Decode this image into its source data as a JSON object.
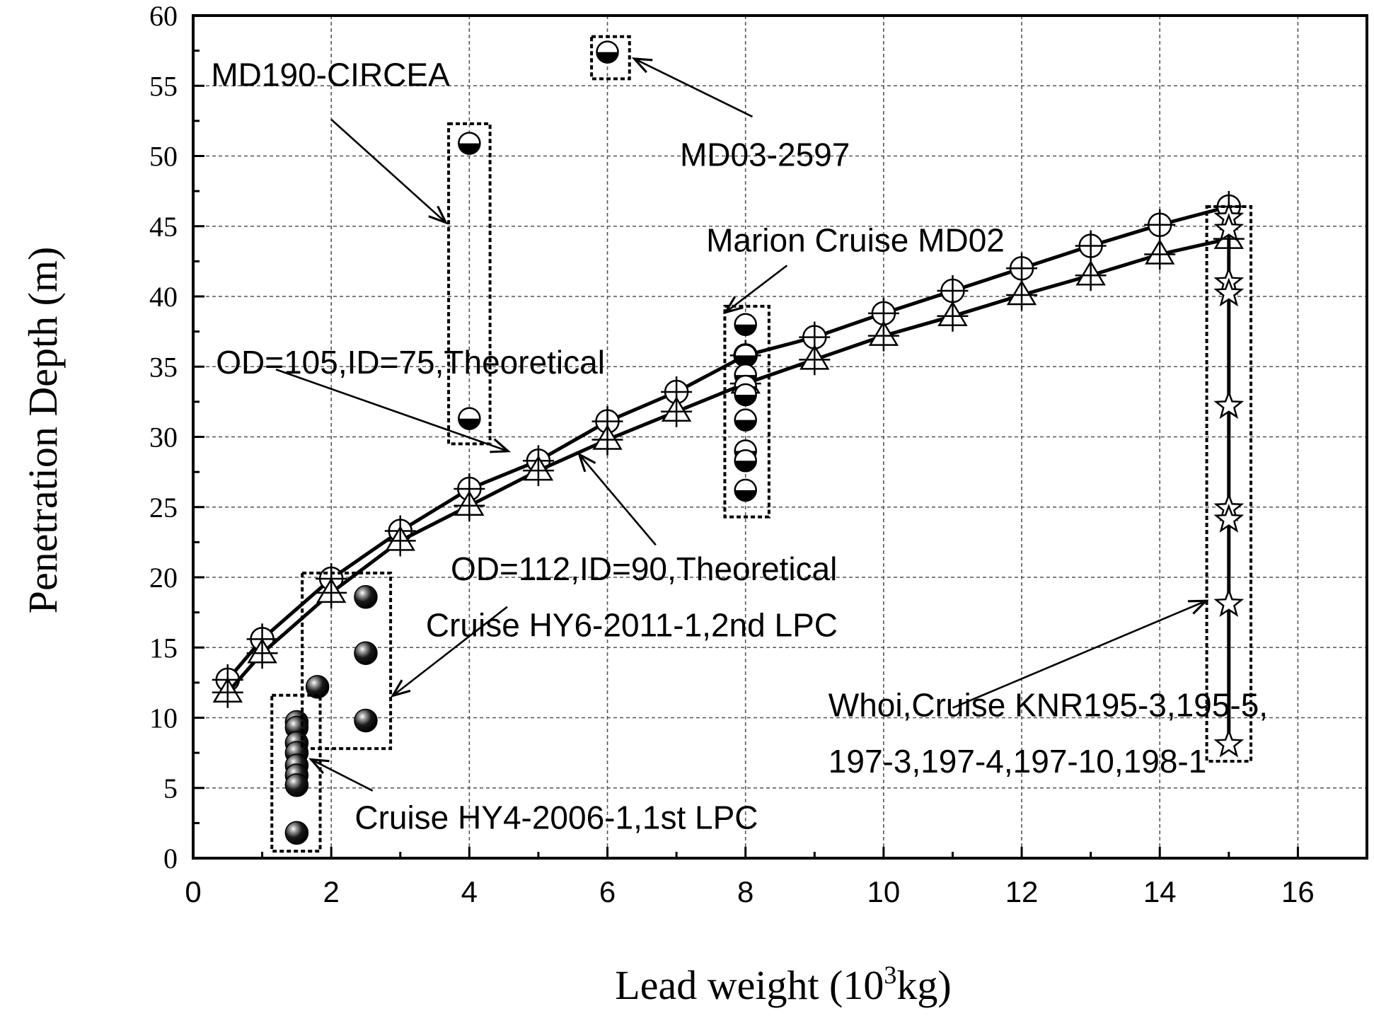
{
  "chart_data": {
    "type": "scatter",
    "title": "",
    "xlabel": "Lead weight (10",
    "xlabel_superscript": "3",
    "xlabel_suffix": "kg)",
    "ylabel": "Penetration Depth (m)",
    "xlim": [
      0,
      17
    ],
    "ylim": [
      0,
      60
    ],
    "xticks": [
      0,
      2,
      4,
      6,
      8,
      10,
      12,
      14,
      16
    ],
    "yticks": [
      0,
      5,
      10,
      15,
      20,
      25,
      30,
      35,
      40,
      45,
      50,
      55,
      60
    ],
    "grid": true,
    "colors": {
      "ink": "#000000",
      "grid": "#555555",
      "background": "#ffffff"
    },
    "series": [
      {
        "name": "OD=105,ID=75,Theoretical",
        "marker": "circle-plus",
        "line": true,
        "x": [
          0.5,
          1,
          2,
          3,
          4,
          5,
          6,
          7,
          8,
          9,
          10,
          11,
          12,
          13,
          14,
          15
        ],
        "y": [
          12.7,
          15.6,
          19.9,
          23.3,
          26.3,
          28.3,
          31.1,
          33.2,
          35.8,
          37.1,
          38.8,
          40.4,
          42.0,
          43.6,
          45.1,
          46.4
        ]
      },
      {
        "name": "OD=112,ID=90,Theoretical",
        "marker": "triangle-plus",
        "line": true,
        "x": [
          0.5,
          1,
          2,
          3,
          4,
          5,
          6,
          7,
          8,
          9,
          10,
          11,
          12,
          13,
          14,
          15
        ],
        "y": [
          11.8,
          14.6,
          18.9,
          22.6,
          25.1,
          27.6,
          29.8,
          31.8,
          33.8,
          35.5,
          37.2,
          38.6,
          40.1,
          41.5,
          43.0,
          44.1
        ]
      },
      {
        "name": "Marion Cruise MD02",
        "marker": "half-filled-circle",
        "line": false,
        "x": [
          8,
          8,
          8,
          8,
          8,
          8,
          8,
          8,
          8
        ],
        "y": [
          38.0,
          35.8,
          34.4,
          33.6,
          33.0,
          31.2,
          29.0,
          28.3,
          26.2
        ]
      },
      {
        "name": "MD190-CIRCEA",
        "marker": "half-filled-circle",
        "line": false,
        "x": [
          4,
          4
        ],
        "y": [
          50.9,
          31.3
        ]
      },
      {
        "name": "MD03-2597",
        "marker": "half-filled-circle",
        "line": false,
        "x": [
          6
        ],
        "y": [
          57.4
        ]
      },
      {
        "name": "Cruise HY6-2011-1,2nd LPC",
        "marker": "filled-sphere",
        "line": false,
        "x": [
          2.5,
          2.5,
          2.5,
          1.8
        ],
        "y": [
          18.6,
          14.6,
          9.8,
          12.2
        ]
      },
      {
        "name": "Cruise HY4-2006-1,1st LPC",
        "marker": "filled-sphere",
        "line": false,
        "x": [
          1.5,
          1.5,
          1.5,
          1.5,
          1.5,
          1.5,
          1.5,
          1.5
        ],
        "y": [
          9.7,
          9.3,
          8.2,
          7.5,
          6.6,
          5.9,
          5.2,
          1.8
        ]
      },
      {
        "name": "Whoi,Cruise KNR195-3,195-5,197-3,197-4,197-10,198-1",
        "marker": "star",
        "line": true,
        "x": [
          15,
          15,
          15,
          15,
          15,
          15,
          15,
          15,
          15
        ],
        "y": [
          45.6,
          44.8,
          41.0,
          40.2,
          32.2,
          24.9,
          24.1,
          18.1,
          8.1
        ]
      }
    ],
    "boxes": [
      {
        "name": "MD03-2597",
        "x": [
          5.77,
          6.32
        ],
        "y": [
          55.5,
          58.5
        ]
      },
      {
        "name": "MD190-CIRCEA",
        "x": [
          3.7,
          4.3
        ],
        "y": [
          29.5,
          52.3
        ]
      },
      {
        "name": "Marion Cruise MD02",
        "x": [
          7.7,
          8.34
        ],
        "y": [
          24.3,
          39.3
        ]
      },
      {
        "name": "Cruise HY6-2011-1,2nd LPC",
        "x": [
          1.58,
          2.86
        ],
        "y": [
          7.8,
          20.3
        ]
      },
      {
        "name": "Cruise HY4-2006-1,1st LPC",
        "x": [
          1.14,
          1.84
        ],
        "y": [
          0.5,
          11.6
        ]
      },
      {
        "name": "Whoi,Cruise KNR195-3,195-5,197-3,197-4,197-10,198-1",
        "x": [
          14.68,
          15.32
        ],
        "y": [
          6.9,
          46.4
        ]
      }
    ],
    "annotations": [
      {
        "id": "md190",
        "lines": [
          "MD190-CIRCEA"
        ],
        "text_at": [
          0.26,
          55.0
        ],
        "arrow_from": [
          2.0,
          52.6
        ],
        "arrow_to": [
          3.65,
          45.3
        ]
      },
      {
        "id": "md03",
        "lines": [
          "MD03-2597"
        ],
        "text_at": [
          7.05,
          49.3
        ],
        "arrow_from": [
          8.1,
          52.8
        ],
        "arrow_to": [
          6.4,
          56.9
        ]
      },
      {
        "id": "marion",
        "lines": [
          "Marion Cruise MD02"
        ],
        "text_at": [
          7.43,
          43.2
        ],
        "arrow_from": [
          8.6,
          42.2
        ],
        "arrow_to": [
          7.72,
          38.9
        ]
      },
      {
        "id": "od105",
        "lines": [
          "OD=105,ID=75,Theoretical"
        ],
        "text_at": [
          0.33,
          34.5
        ],
        "arrow_from": [
          1.2,
          34.8
        ],
        "arrow_to": [
          4.55,
          29.0
        ]
      },
      {
        "id": "od112",
        "lines": [
          "OD=112,ID=90,Theoretical"
        ],
        "text_at": [
          3.73,
          19.8
        ],
        "arrow_from": [
          6.7,
          22.3
        ],
        "arrow_to": [
          5.6,
          28.7
        ]
      },
      {
        "id": "hy6",
        "lines": [
          "Cruise HY6-2011-1,2nd LPC"
        ],
        "text_at": [
          3.37,
          15.8
        ],
        "arrow_from": [
          4.55,
          17.9
        ],
        "arrow_to": [
          2.9,
          11.6
        ]
      },
      {
        "id": "hy4",
        "lines": [
          "Cruise HY4-2006-1,1st LPC"
        ],
        "text_at": [
          2.34,
          2.1
        ],
        "arrow_from": [
          2.6,
          4.8
        ],
        "arrow_to": [
          1.72,
          7.0
        ]
      },
      {
        "id": "whoi",
        "lines": [
          "Whoi,Cruise KNR195-3,195-5,",
          "197-3,197-4,197-10,198-1"
        ],
        "text_at": [
          9.2,
          10.1
        ],
        "line_gap": 4.0,
        "arrow_from": [
          11.0,
          10.7
        ],
        "arrow_to": [
          14.66,
          18.3
        ]
      }
    ]
  }
}
